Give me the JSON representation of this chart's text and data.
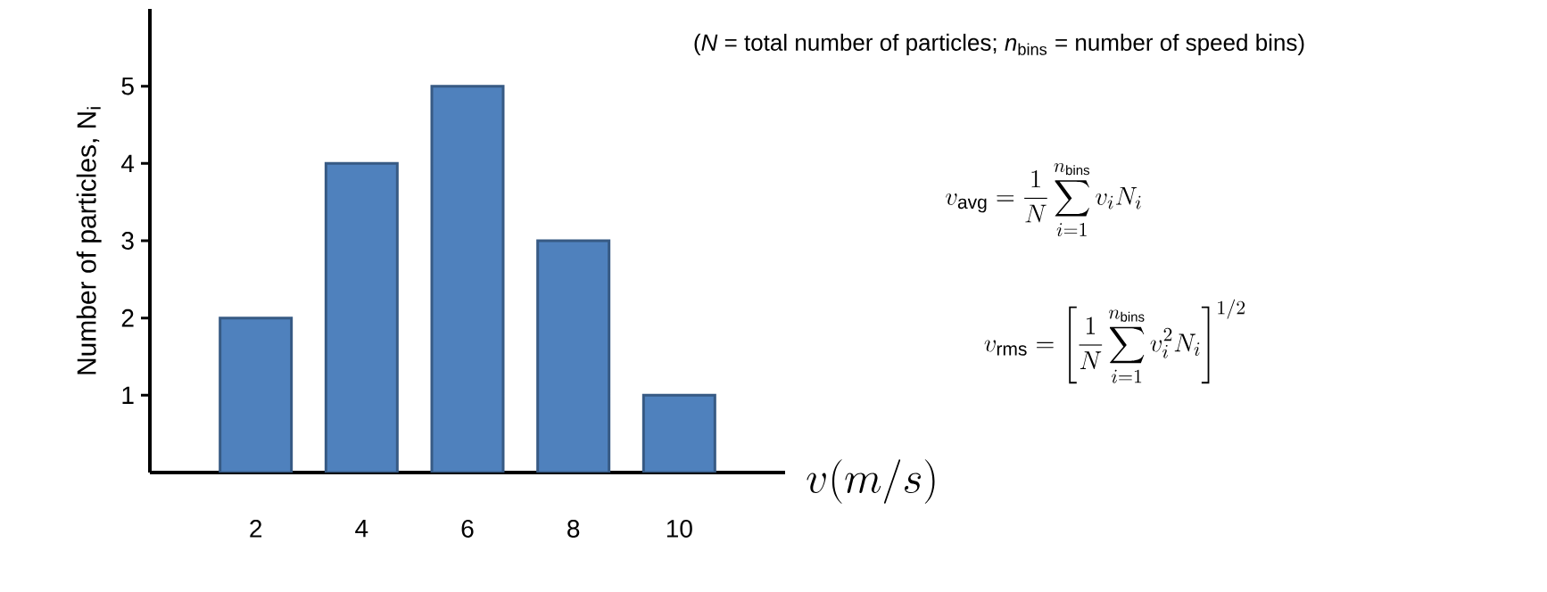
{
  "chart_data": {
    "type": "bar",
    "categories": [
      "2",
      "4",
      "6",
      "8",
      "10"
    ],
    "values": [
      2,
      4,
      5,
      3,
      1
    ],
    "color": "#4f81bd",
    "ylabel": "Number of particles, N$_{i}$",
    "xlabel": "v(m/s)",
    "ylim": [
      0,
      6
    ],
    "yticks": [
      1,
      2,
      3,
      4,
      5
    ],
    "grid": false,
    "annotations": [
      "(*N* = total number of particles; *n*$_{bins}$ = number of speed bins)",
      "v_{\\mathrm{avg}} = \\frac{1}{N}\\sum_{i=1}^{n_{\\mathrm{bins}}} v_i N_i",
      "v_{\\mathrm{rms}} = \\left[\\frac{1}{N}\\sum_{i=1}^{n_{\\mathrm{bins}}} v_i^2 N_i\\right]^{1/2}"
    ]
  }
}
